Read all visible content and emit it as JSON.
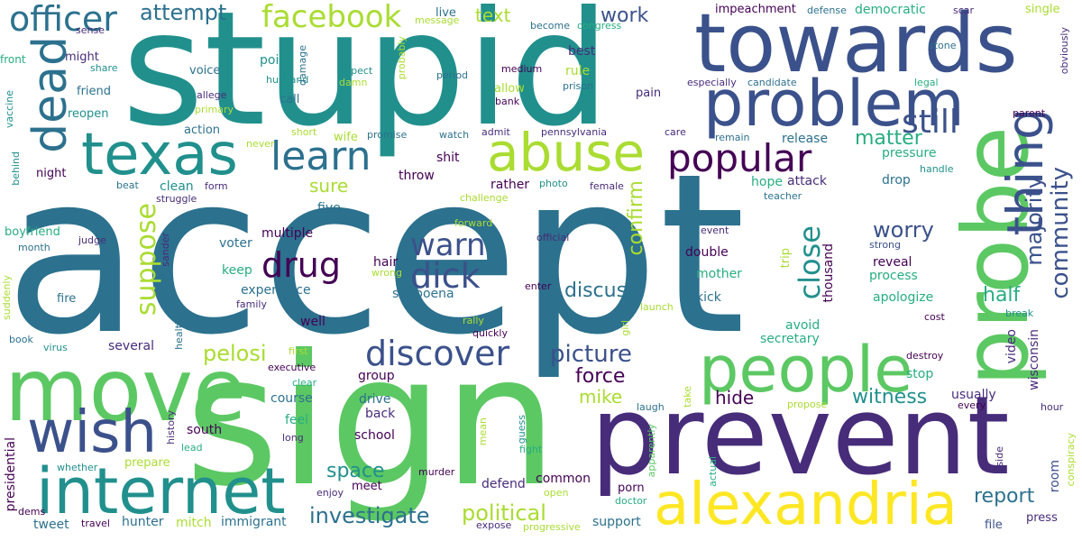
{
  "palette": {
    "background": "#ffffff",
    "dark_purple": "#440154",
    "indigo": "#472c7a",
    "blue": "#3b518b",
    "steel": "#2c718e",
    "teal": "#21908d",
    "green_teal": "#27ad81",
    "green": "#5cc863",
    "lime": "#aadc32",
    "yellow": "#fde725"
  },
  "words": [
    "accept",
    "sign",
    "stupid",
    "prevent",
    "move",
    "probe",
    "towards",
    "internet",
    "people",
    "alexandria",
    "abuse",
    "problem",
    "texas",
    "wish",
    "dead",
    "thing",
    "learn",
    "popular",
    "officer",
    "drug",
    "dick",
    "discover",
    "facebook",
    "still",
    "warn",
    "suppose",
    "close",
    "picture",
    "community",
    "matter",
    "majority",
    "confirm",
    "investigate",
    "pelosi",
    "attempt",
    "political",
    "report",
    "discus",
    "half",
    "force",
    "worry",
    "witness",
    "hide",
    "space",
    "mike",
    "work",
    "text",
    "sure",
    "democratic",
    "impeachment",
    "apologize",
    "reveal",
    "process",
    "stop",
    "usually",
    "wisconsin",
    "video",
    "obviously",
    "room",
    "front",
    "double",
    "mother",
    "kick",
    "mitch",
    "immigrant",
    "hunter",
    "support",
    "tweet",
    "presidential",
    "course",
    "feel",
    "south",
    "school",
    "group",
    "drive",
    "back",
    "well",
    "several",
    "experience",
    "multiple",
    "voter",
    "keep",
    "throw",
    "shit",
    "rather",
    "challenge",
    "five",
    "hair",
    "subpoena",
    "wrong",
    "enter",
    "quickly",
    "rally",
    "murder",
    "meet",
    "defend",
    "common",
    "porn",
    "doctor",
    "apparently",
    "actual",
    "take",
    "propose",
    "laugh",
    "every",
    "hour",
    "destroy",
    "cost",
    "break",
    "secretary",
    "avoid",
    "thousand",
    "trip",
    "hope",
    "attack",
    "teacher",
    "handle",
    "drop",
    "pressure",
    "release",
    "remain",
    "care",
    "pennsylvania",
    "admit",
    "watch",
    "promise",
    "wife",
    "never",
    "short",
    "clean",
    "form",
    "struggle",
    "beat",
    "photo",
    "female",
    "forward",
    "official",
    "judge",
    "sander",
    "boyfriend",
    "month",
    "fire",
    "virus",
    "book",
    "suddenly",
    "health",
    "first",
    "executive",
    "history",
    "lead",
    "prepare",
    "whether",
    "dems",
    "travel",
    "enjoy",
    "open",
    "progressive",
    "expose",
    "file",
    "press",
    "side",
    "conspiracy",
    "mean",
    "guess",
    "fight",
    "girl",
    "launch",
    "clear",
    "long",
    "family",
    "strong",
    "event",
    "vaccine",
    "behind",
    "night",
    "action",
    "friend",
    "reopen",
    "might",
    "share",
    "sense",
    "voice",
    "point",
    "husband",
    "damage",
    "call",
    "allege",
    "primary",
    "expect",
    "damn",
    "period",
    "medium",
    "allow",
    "bank",
    "prison",
    "rule",
    "best",
    "become",
    "congress",
    "message",
    "live",
    "probably",
    "pain",
    "especially",
    "candidate",
    "legal",
    "parent",
    "stone",
    "scar",
    "single",
    "defense"
  ]
}
